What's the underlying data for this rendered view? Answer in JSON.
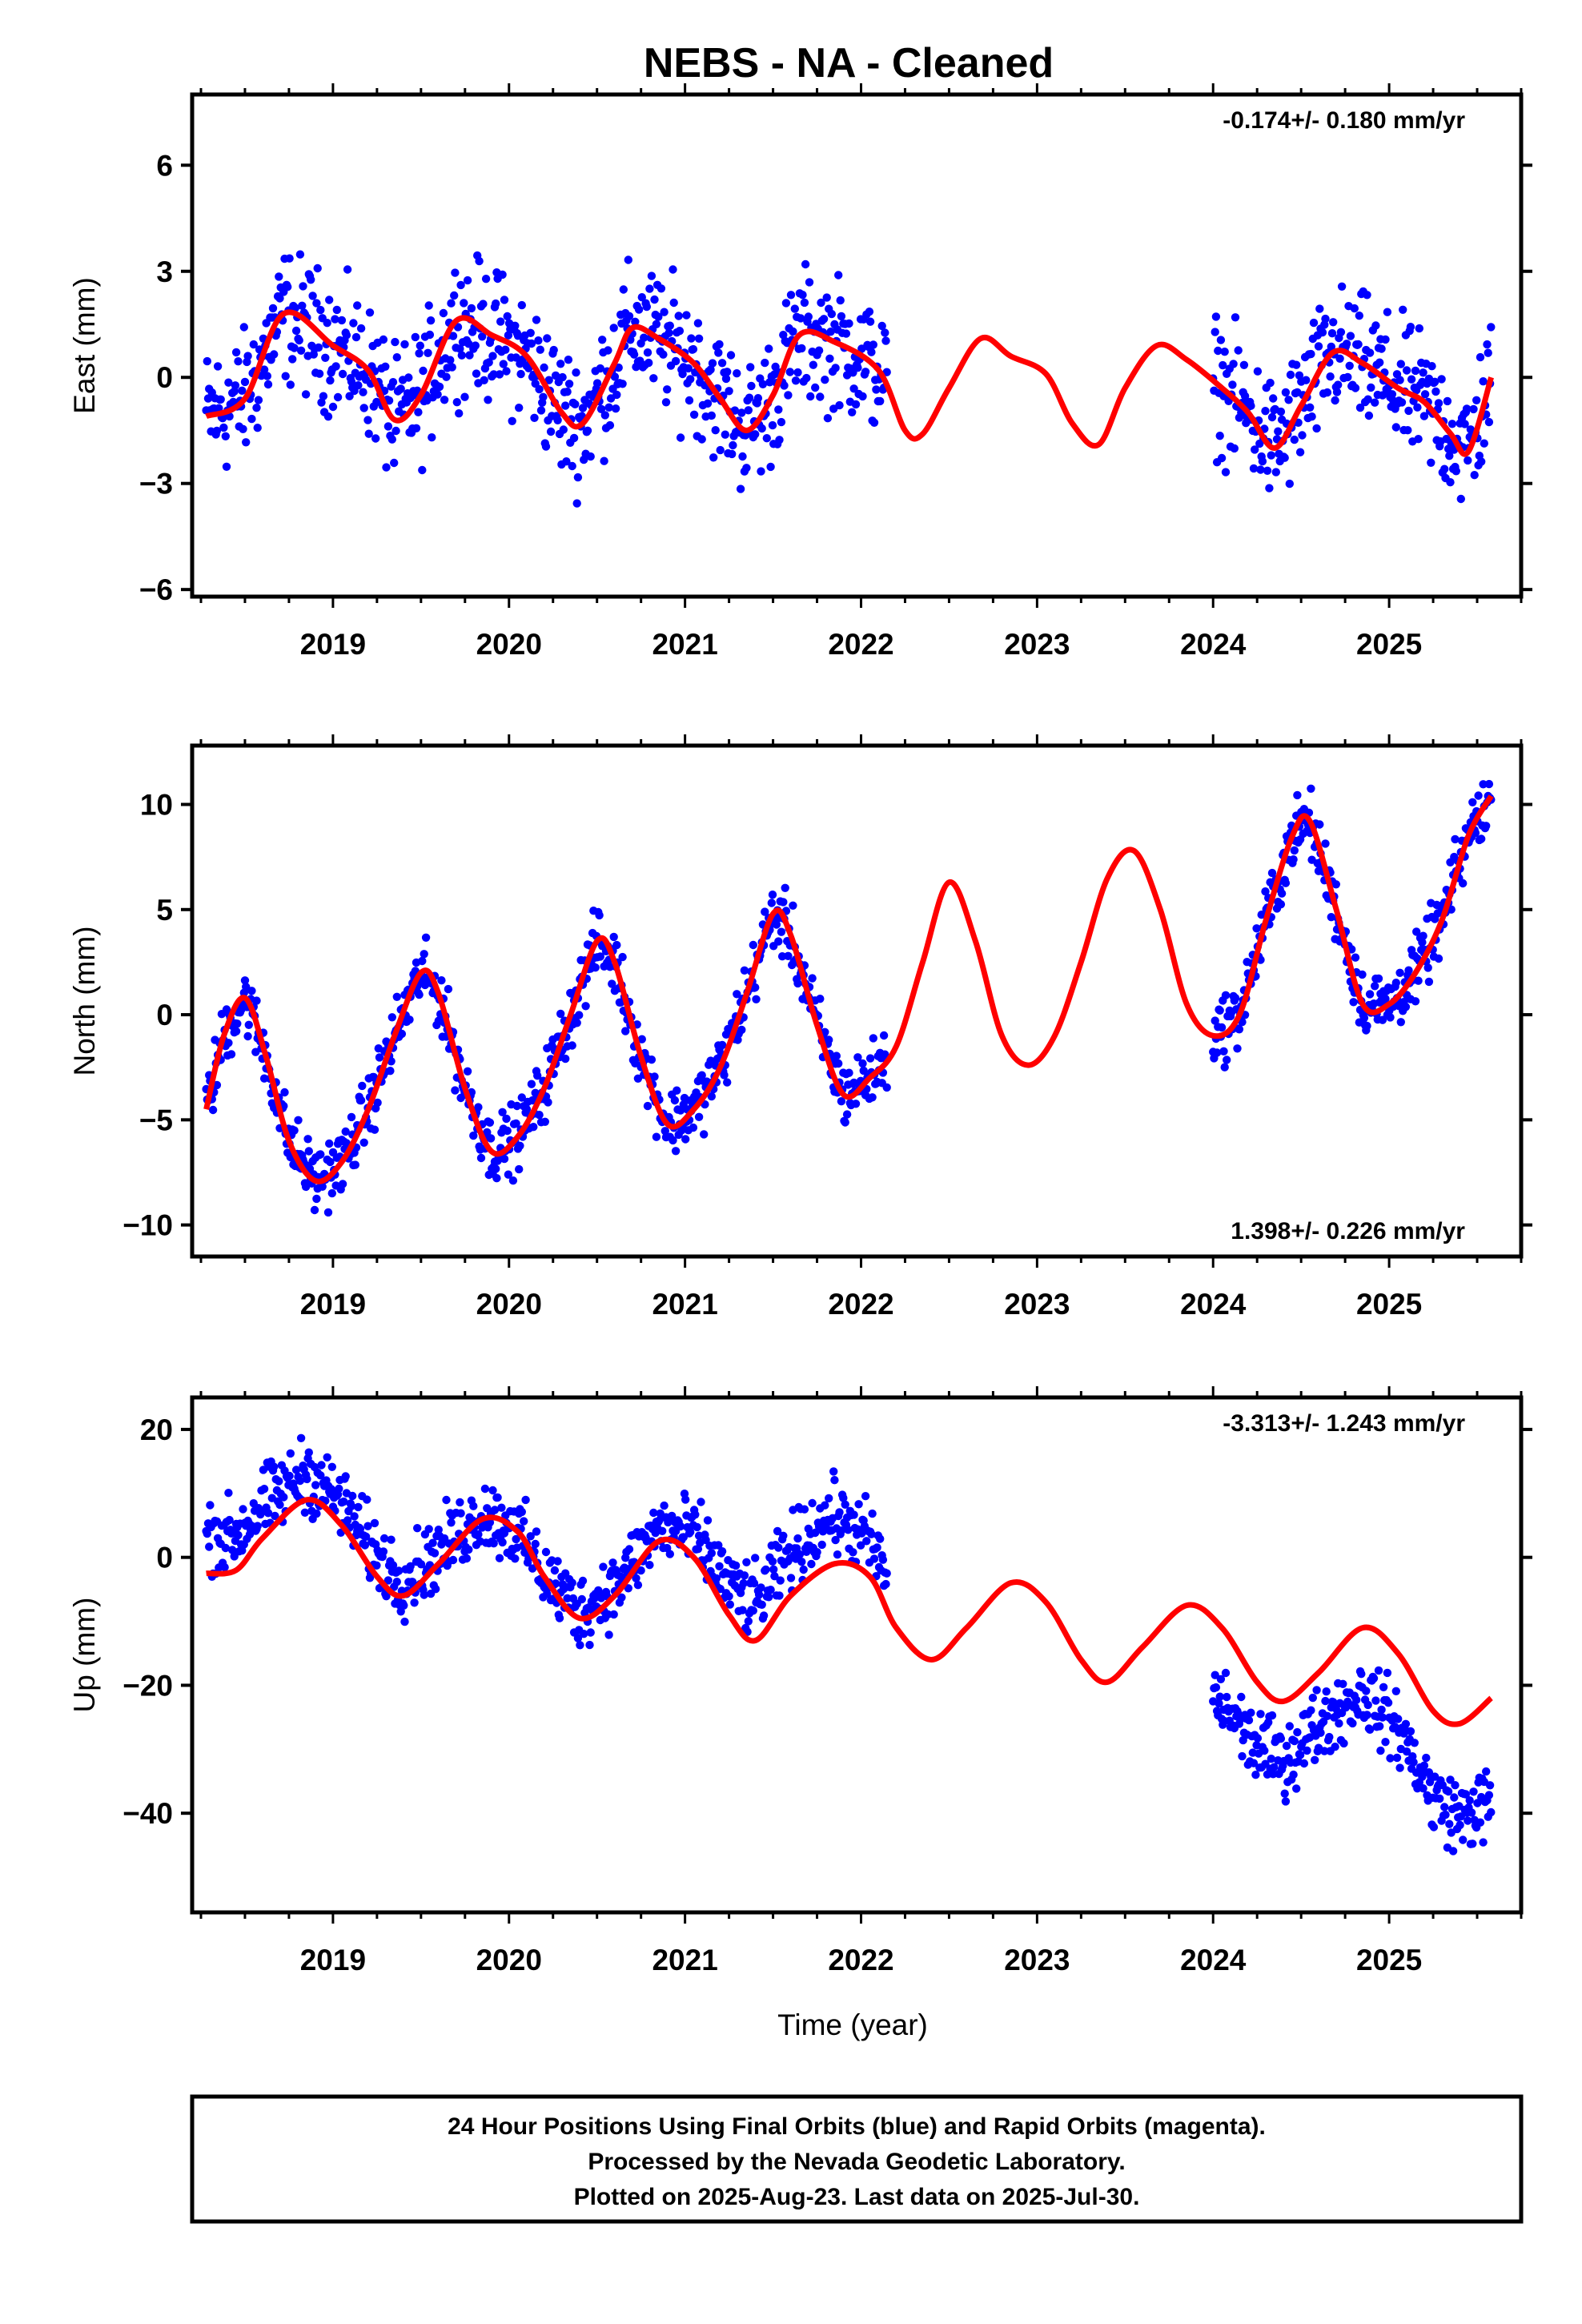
{
  "title": "NEBS  - NA - Cleaned",
  "colors": {
    "points": "#0000ff",
    "fit": "#ff0000",
    "frame": "#000000"
  },
  "chart_data": [
    {
      "type": "scatter",
      "ylabel": "East (mm)",
      "xlim": [
        2018.2,
        2025.75
      ],
      "ylim": [
        -6.2,
        8.0
      ],
      "yticks": [
        -6,
        -3,
        0,
        3,
        6
      ],
      "xticks": [
        2019,
        2020,
        2021,
        2022,
        2023,
        2024,
        2025
      ],
      "rate_label": "-0.174+/- 0.180 mm/yr",
      "rate_position": "top-right",
      "series": [
        {
          "kind": "points",
          "segments": [
            [
              2018.28,
              2022.15
            ],
            [
              2024.0,
              2025.58
            ]
          ],
          "envelope_mm": 1.3
        },
        {
          "kind": "fit",
          "x": [
            2018.28,
            2018.5,
            2018.72,
            2019.0,
            2019.2,
            2019.35,
            2019.5,
            2019.7,
            2019.9,
            2020.1,
            2020.3,
            2020.42,
            2020.6,
            2020.7,
            2020.85,
            2021.05,
            2021.2,
            2021.35,
            2021.5,
            2021.65,
            2021.85,
            2022.1,
            2022.25,
            2022.35,
            2022.5,
            2022.68,
            2022.85,
            2023.05,
            2023.2,
            2023.35,
            2023.5,
            2023.68,
            2023.85,
            2024.05,
            2024.2,
            2024.35,
            2024.5,
            2024.68,
            2024.85,
            2025.05,
            2025.2,
            2025.35,
            2025.45,
            2025.58
          ],
          "y": [
            -1.1,
            -0.6,
            1.8,
            0.9,
            0.2,
            -1.2,
            -0.5,
            1.6,
            1.2,
            0.6,
            -1.0,
            -1.3,
            0.4,
            1.4,
            1.1,
            0.4,
            -0.6,
            -1.5,
            -0.5,
            1.2,
            1.0,
            0.2,
            -1.5,
            -1.6,
            -0.3,
            1.1,
            0.6,
            0.1,
            -1.3,
            -1.9,
            -0.3,
            0.9,
            0.5,
            -0.3,
            -1.0,
            -2.0,
            -0.8,
            0.7,
            0.4,
            -0.3,
            -0.7,
            -1.6,
            -2.1,
            0.0
          ]
        }
      ]
    },
    {
      "type": "scatter",
      "ylabel": "North (mm)",
      "xlim": [
        2018.2,
        2025.75
      ],
      "ylim": [
        -11.5,
        12.8
      ],
      "yticks": [
        -10,
        -5,
        0,
        5,
        10
      ],
      "xticks": [
        2019,
        2020,
        2021,
        2022,
        2023,
        2024,
        2025
      ],
      "rate_label": "1.398+/- 0.226 mm/yr",
      "rate_position": "bottom-right",
      "series": [
        {
          "kind": "points",
          "segments": [
            [
              2018.28,
              2022.15
            ],
            [
              2024.0,
              2025.58
            ]
          ],
          "envelope_mm": 1.1
        },
        {
          "kind": "fit",
          "x": [
            2018.28,
            2018.38,
            2018.5,
            2018.62,
            2018.75,
            2018.9,
            2019.05,
            2019.2,
            2019.35,
            2019.5,
            2019.6,
            2019.75,
            2019.9,
            2020.05,
            2020.2,
            2020.35,
            2020.5,
            2020.6,
            2020.75,
            2020.9,
            2021.05,
            2021.2,
            2021.35,
            2021.5,
            2021.6,
            2021.75,
            2021.9,
            2022.05,
            2022.2,
            2022.35,
            2022.5,
            2022.65,
            2022.8,
            2022.95,
            2023.1,
            2023.25,
            2023.4,
            2023.55,
            2023.7,
            2023.85,
            2024.0,
            2024.15,
            2024.3,
            2024.45,
            2024.55,
            2024.7,
            2024.85,
            2025.0,
            2025.15,
            2025.3,
            2025.45,
            2025.58
          ],
          "y": [
            -4.5,
            -1.0,
            0.8,
            -2.0,
            -6.0,
            -7.9,
            -7.0,
            -4.5,
            -1.0,
            2.0,
            1.0,
            -3.5,
            -6.5,
            -5.8,
            -3.5,
            0.0,
            3.5,
            2.5,
            -2.0,
            -5.2,
            -4.5,
            -2.5,
            1.0,
            4.8,
            3.8,
            -0.5,
            -3.8,
            -3.0,
            -1.5,
            2.5,
            6.3,
            3.5,
            -1.0,
            -2.4,
            -1.0,
            2.5,
            6.5,
            7.8,
            5.0,
            0.5,
            -1.0,
            0.0,
            4.5,
            8.5,
            9.2,
            5.0,
            0.5,
            0.5,
            2.0,
            4.5,
            8.5,
            10.4
          ]
        }
      ]
    },
    {
      "type": "scatter",
      "ylabel": "Up (mm)",
      "xlim": [
        2018.2,
        2025.75
      ],
      "ylim": [
        -55.5,
        25.0
      ],
      "yticks": [
        -40,
        -20,
        0,
        20
      ],
      "xticks": [
        2019,
        2020,
        2021,
        2022,
        2023,
        2024,
        2025
      ],
      "xlabel": "Time (year)",
      "rate_label": "-3.313+/- 1.243 mm/yr",
      "rate_position": "top-right",
      "series": [
        {
          "kind": "points",
          "segments": [
            [
              2018.28,
              2022.15
            ],
            [
              2024.0,
              2025.58
            ]
          ],
          "envelope_mm": 4.0,
          "offsets_mm": [
            [
              2018.28,
              6.0
            ],
            [
              2019.4,
              2.5
            ],
            [
              2020.1,
              0.0
            ],
            [
              2020.8,
              2.0
            ],
            [
              2021.8,
              8.0
            ],
            [
              2024.0,
              -12.0
            ],
            [
              2024.6,
              -8.0
            ],
            [
              2025.58,
              -16.0
            ]
          ]
        },
        {
          "kind": "fit",
          "x": [
            2018.28,
            2018.45,
            2018.6,
            2018.85,
            2019.05,
            2019.25,
            2019.4,
            2019.6,
            2019.85,
            2020.05,
            2020.2,
            2020.4,
            2020.6,
            2020.85,
            2021.05,
            2021.25,
            2021.4,
            2021.6,
            2021.85,
            2022.05,
            2022.2,
            2022.4,
            2022.6,
            2022.85,
            2023.05,
            2023.25,
            2023.4,
            2023.6,
            2023.85,
            2024.05,
            2024.25,
            2024.4,
            2024.6,
            2024.85,
            2025.05,
            2025.25,
            2025.4,
            2025.58
          ],
          "y": [
            -2.5,
            -2.0,
            3.0,
            9.0,
            5.0,
            -3.0,
            -6.0,
            -1.0,
            6.0,
            4.0,
            -3.0,
            -9.5,
            -6.0,
            2.5,
            0.0,
            -9.0,
            -13.0,
            -6.0,
            -1.0,
            -3.0,
            -11.0,
            -16.0,
            -11.0,
            -4.0,
            -7.0,
            -16.0,
            -19.5,
            -14.0,
            -7.5,
            -11.0,
            -19.5,
            -22.5,
            -18.0,
            -11.0,
            -15.0,
            -24.0,
            -26.0,
            -22.0
          ]
        }
      ]
    }
  ],
  "footer": {
    "line1": "24 Hour Positions Using Final Orbits (blue) and Rapid Orbits (magenta).",
    "line2": "Processed by the Nevada Geodetic Laboratory.",
    "line3": "Plotted on 2025-Aug-23. Last data on 2025-Jul-30."
  }
}
